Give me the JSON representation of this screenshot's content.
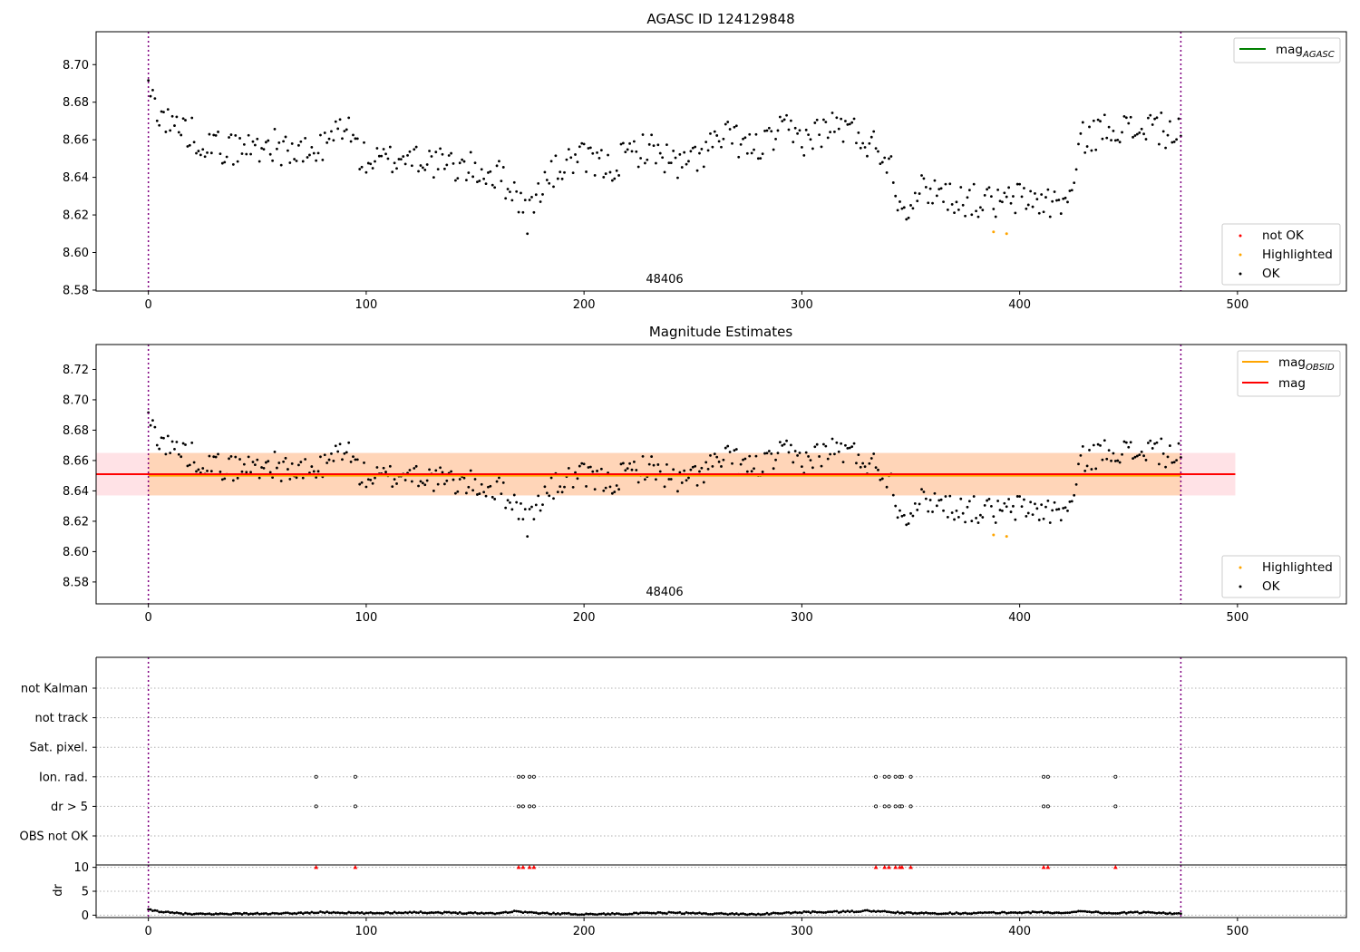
{
  "chart_data": [
    {
      "type": "scatter",
      "title": "AGASC ID 124129848",
      "annotation": "48406",
      "xlabel": "",
      "ylabel": "",
      "xlim": [
        -24,
        550
      ],
      "ylim": [
        8.5795,
        8.7175
      ],
      "xticks": [
        0,
        100,
        200,
        300,
        400,
        500
      ],
      "yticks": [
        8.58,
        8.6,
        8.62,
        8.64,
        8.66,
        8.68,
        8.7
      ],
      "vlines": [
        0,
        474
      ],
      "grid": false,
      "series": [
        {
          "name": "not OK",
          "color": "#ff0000",
          "x": [],
          "y": []
        },
        {
          "name": "Highlighted",
          "color": "#ffa500",
          "x": [
            388,
            394
          ],
          "y": [
            8.611,
            8.61
          ]
        },
        {
          "name": "OK",
          "color": "#000000",
          "x": [
            0,
            8,
            16,
            24,
            32,
            40,
            48,
            56,
            64,
            72,
            80,
            90,
            98,
            106,
            114,
            122,
            130,
            138,
            146,
            154,
            162,
            170,
            174,
            180,
            188,
            196,
            204,
            212,
            220,
            228,
            236,
            244,
            252,
            260,
            268,
            276,
            284,
            292,
            300,
            308,
            316,
            324,
            332,
            340,
            346,
            352,
            360,
            368,
            376,
            384,
            392,
            400,
            408,
            416,
            424,
            428,
            436,
            444,
            452,
            460,
            468,
            474
          ],
          "y": [
            8.686,
            8.67,
            8.666,
            8.66,
            8.656,
            8.655,
            8.656,
            8.658,
            8.654,
            8.652,
            8.655,
            8.67,
            8.65,
            8.648,
            8.65,
            8.652,
            8.648,
            8.646,
            8.645,
            8.643,
            8.64,
            8.63,
            8.618,
            8.635,
            8.644,
            8.65,
            8.648,
            8.645,
            8.652,
            8.656,
            8.652,
            8.645,
            8.651,
            8.658,
            8.662,
            8.655,
            8.658,
            8.665,
            8.66,
            8.664,
            8.668,
            8.664,
            8.658,
            8.65,
            8.622,
            8.632,
            8.634,
            8.63,
            8.628,
            8.627,
            8.626,
            8.629,
            8.628,
            8.626,
            8.63,
            8.66,
            8.664,
            8.668,
            8.664,
            8.668,
            8.664,
            8.662
          ]
        }
      ],
      "legend": [
        {
          "label": "mag",
          "sub": "AGASC",
          "color": "#008000",
          "kind": "line",
          "loc": "upper right"
        }
      ]
    },
    {
      "type": "scatter",
      "title": "Magnitude Estimates",
      "annotation": "48406",
      "xlabel": "",
      "ylabel": "",
      "xlim": [
        -24,
        550
      ],
      "ylim": [
        8.5656,
        8.7364
      ],
      "xticks": [
        0,
        100,
        200,
        300,
        400,
        500
      ],
      "yticks": [
        8.58,
        8.6,
        8.62,
        8.64,
        8.66,
        8.68,
        8.7,
        8.72
      ],
      "vlines": [
        0,
        474
      ],
      "grid": false,
      "bands": [
        {
          "x": [
            -24,
            499
          ],
          "y": [
            8.637,
            8.665
          ],
          "color": "#ffb6c1",
          "opacity": 0.4
        },
        {
          "x": [
            0,
            474
          ],
          "y": [
            8.637,
            8.665
          ],
          "color": "#ffa500",
          "opacity": 0.2
        }
      ],
      "hlines": [
        {
          "y": 8.65,
          "x": [
            0,
            474
          ],
          "color": "#ffa500"
        },
        {
          "y": 8.651,
          "x": [
            -24,
            499
          ],
          "color": "#ff0000"
        }
      ],
      "series": [
        {
          "name": "Highlighted",
          "color": "#ffa500",
          "x": [
            388,
            394
          ],
          "y": [
            8.611,
            8.61
          ]
        },
        {
          "name": "OK",
          "color": "#000000",
          "x": [
            0,
            8,
            16,
            24,
            32,
            40,
            48,
            56,
            64,
            72,
            80,
            90,
            98,
            106,
            114,
            122,
            130,
            138,
            146,
            154,
            162,
            170,
            174,
            180,
            188,
            196,
            204,
            212,
            220,
            228,
            236,
            244,
            252,
            260,
            268,
            276,
            284,
            292,
            300,
            308,
            316,
            324,
            332,
            340,
            346,
            352,
            360,
            368,
            376,
            384,
            392,
            400,
            408,
            416,
            424,
            428,
            436,
            444,
            452,
            460,
            468,
            474
          ],
          "y": [
            8.686,
            8.67,
            8.666,
            8.66,
            8.656,
            8.655,
            8.656,
            8.658,
            8.654,
            8.652,
            8.655,
            8.67,
            8.65,
            8.648,
            8.65,
            8.652,
            8.648,
            8.646,
            8.645,
            8.643,
            8.64,
            8.63,
            8.618,
            8.635,
            8.644,
            8.65,
            8.648,
            8.645,
            8.652,
            8.656,
            8.652,
            8.645,
            8.651,
            8.658,
            8.662,
            8.655,
            8.658,
            8.665,
            8.66,
            8.664,
            8.668,
            8.664,
            8.658,
            8.65,
            8.622,
            8.632,
            8.634,
            8.63,
            8.628,
            8.627,
            8.626,
            8.629,
            8.628,
            8.626,
            8.63,
            8.66,
            8.664,
            8.668,
            8.664,
            8.668,
            8.664,
            8.662
          ]
        }
      ],
      "legend": [
        {
          "label": "mag",
          "sub": "OBSID",
          "color": "#ffa500",
          "kind": "line",
          "loc": "upper right"
        },
        {
          "label": "mag",
          "sub": "",
          "color": "#ff0000",
          "kind": "line",
          "loc": "upper right"
        }
      ]
    },
    {
      "type": "scatter",
      "title": "",
      "xlim": [
        -24,
        550
      ],
      "categories": [
        "not Kalman",
        "not track",
        "Sat. pixel.",
        "Ion. rad.",
        "dr > 5",
        "OBS not OK"
      ],
      "grid": true,
      "flags": {
        "Ion. rad.": [
          77,
          95,
          170,
          172,
          175,
          177,
          334,
          338,
          340,
          343,
          345,
          346,
          350,
          411,
          413,
          444
        ],
        "dr > 5": [
          77,
          95,
          170,
          172,
          175,
          177,
          334,
          338,
          340,
          343,
          345,
          346,
          350,
          411,
          413,
          444
        ]
      },
      "vlines": [
        0,
        474
      ]
    },
    {
      "type": "scatter",
      "title": "",
      "ylabel": "dr",
      "xlim": [
        -24,
        550
      ],
      "ylim": [
        -0.5,
        10.5
      ],
      "xticks": [
        0,
        100,
        200,
        300,
        400,
        500
      ],
      "yticks": [
        0,
        5,
        10
      ],
      "grid": true,
      "vlines": [
        0,
        474
      ],
      "outliers": {
        "color": "#ff0000",
        "y": 10,
        "x": [
          77,
          95,
          170,
          172,
          175,
          177,
          334,
          338,
          340,
          343,
          345,
          346,
          350,
          411,
          413,
          444
        ]
      },
      "series": [
        {
          "name": "dr",
          "color": "#000000",
          "x": [
            0,
            10,
            20,
            40,
            60,
            80,
            100,
            120,
            140,
            160,
            168,
            180,
            200,
            220,
            240,
            260,
            280,
            300,
            320,
            330,
            350,
            370,
            390,
            410,
            420,
            428,
            440,
            460,
            474
          ],
          "y": [
            1.1,
            0.5,
            0.2,
            0.3,
            0.3,
            0.6,
            0.4,
            0.6,
            0.5,
            0.4,
            0.8,
            0.4,
            0.2,
            0.3,
            0.5,
            0.3,
            0.2,
            0.6,
            0.7,
            0.9,
            0.4,
            0.4,
            0.5,
            0.6,
            0.4,
            0.9,
            0.4,
            0.6,
            0.3
          ]
        }
      ]
    }
  ]
}
